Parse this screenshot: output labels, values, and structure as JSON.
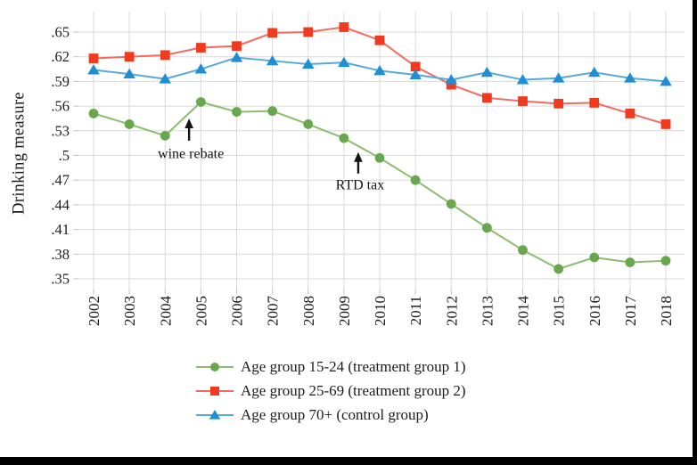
{
  "frame": {
    "background": "#000000",
    "panel_background": "#ffffff"
  },
  "chart_data": {
    "type": "line",
    "title": "",
    "xlabel": "",
    "ylabel": "Drinking measure",
    "grid": true,
    "legend_position": "bottom",
    "ylim": [
      0.35,
      0.65
    ],
    "x_years": [
      2002,
      2003,
      2004,
      2005,
      2006,
      2007,
      2008,
      2009,
      2010,
      2011,
      2012,
      2013,
      2014,
      2015,
      2016,
      2017,
      2018
    ],
    "y_ticks": [
      {
        "label": ".35",
        "value": 0.35
      },
      {
        "label": ".38",
        "value": 0.38
      },
      {
        "label": ".41",
        "value": 0.41
      },
      {
        "label": ".44",
        "value": 0.44
      },
      {
        "label": ".47",
        "value": 0.47
      },
      {
        "label": ".5",
        "value": 0.5
      },
      {
        "label": ".53",
        "value": 0.53
      },
      {
        "label": ".56",
        "value": 0.56
      },
      {
        "label": ".59",
        "value": 0.59
      },
      {
        "label": ".62",
        "value": 0.62
      },
      {
        "label": ".65",
        "value": 0.65
      }
    ],
    "series": [
      {
        "name": "Age group 15-24 (treatment group 1)",
        "marker": "circle",
        "color": "#69a74e",
        "line_color": "#8cbc6d",
        "values": [
          0.551,
          0.538,
          0.524,
          0.565,
          0.553,
          0.554,
          0.538,
          0.521,
          0.497,
          0.47,
          0.441,
          0.412,
          0.385,
          0.362,
          0.376,
          0.37,
          0.372
        ]
      },
      {
        "name": "Age group 25-69 (treatment group 2)",
        "marker": "square",
        "color": "#f03a1f",
        "line_color": "#f46b5e",
        "values": [
          0.618,
          0.62,
          0.622,
          0.631,
          0.633,
          0.649,
          0.65,
          0.656,
          0.64,
          0.608,
          0.586,
          0.57,
          0.566,
          0.563,
          0.564,
          0.551,
          0.538
        ]
      },
      {
        "name": "Age group 70+ (control group)",
        "marker": "triangle",
        "color": "#1f8fd5",
        "line_color": "#57a9da",
        "values": [
          0.604,
          0.599,
          0.593,
          0.605,
          0.619,
          0.615,
          0.611,
          0.613,
          0.603,
          0.598,
          0.592,
          0.601,
          0.592,
          0.594,
          0.601,
          0.594,
          0.59
        ]
      }
    ],
    "annotations": [
      {
        "text": "wine rebate",
        "year": 2004.67,
        "arrow_tip_value": 0.545,
        "arrow_base_value": 0.518,
        "label_value": 0.497
      },
      {
        "text": "RTD tax",
        "year": 2009.4,
        "arrow_tip_value": 0.504,
        "arrow_base_value": 0.478,
        "label_value": 0.459
      }
    ]
  }
}
